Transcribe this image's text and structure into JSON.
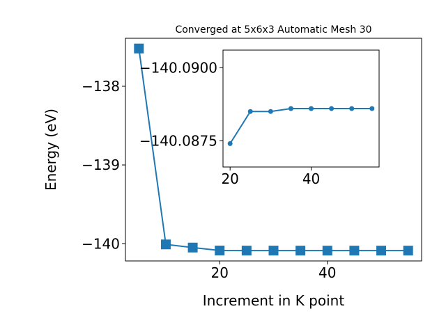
{
  "chart_data": [
    {
      "type": "line",
      "title": "Converged at 5x6x3 Automatic Mesh 30",
      "xlabel": "Increment in K point",
      "ylabel": "Energy (eV)",
      "x": [
        5,
        10,
        15,
        20,
        25,
        30,
        35,
        40,
        45,
        50,
        55
      ],
      "values": [
        -137.52,
        -140.01,
        -140.05,
        -140.0874,
        -140.0885,
        -140.0885,
        -140.0886,
        -140.0886,
        -140.0886,
        -140.0886,
        -140.0886
      ],
      "color": "#1f77b4",
      "marker": "square",
      "xlim": [
        2.5,
        57.5
      ],
      "xticks": [
        20,
        40
      ],
      "ylim": [
        -140.22,
        -137.39
      ],
      "yticks": [
        {
          "value": -140,
          "label": "−140"
        },
        {
          "value": -139,
          "label": "−139"
        },
        {
          "value": -138,
          "label": "−138"
        }
      ]
    },
    {
      "type": "line",
      "x": [
        20,
        25,
        30,
        35,
        40,
        45,
        50,
        55
      ],
      "values": [
        -140.0874,
        -140.0885,
        -140.0885,
        -140.0886,
        -140.0886,
        -140.0886,
        -140.0886,
        -140.0886
      ],
      "color": "#1f77b4",
      "marker": "circle",
      "xlim": [
        18.25,
        56.75
      ],
      "xticks": [
        20,
        40
      ],
      "ylim": [
        -140.0866,
        -140.0906
      ],
      "yticks": [
        {
          "value": -140.0875,
          "label": "−140.0875"
        },
        {
          "value": -140.09,
          "label": "−140.0900"
        }
      ]
    }
  ]
}
